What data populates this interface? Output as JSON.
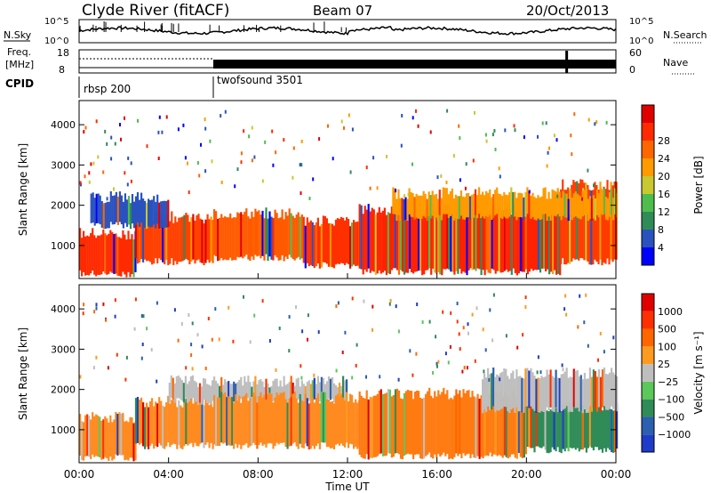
{
  "header": {
    "station": "Clyde River (fitACF)",
    "beam": "Beam 07",
    "date": "20/Oct/2013"
  },
  "top_panels": {
    "nsky_label": "N.Sky",
    "nsearch_label": "N.Search",
    "noise_ticks": [
      "10^5",
      "10^0"
    ],
    "freq_label_1": "Freq.",
    "freq_label_2": "[MHz]",
    "freq_ticks": [
      "18",
      "8"
    ],
    "nave_label": "Nave",
    "nave_ticks": [
      "60",
      "0"
    ],
    "cpid_label": "CPID",
    "cpid_segments": [
      {
        "name": "rbsp 200",
        "start": "00:00",
        "end": "06:00"
      },
      {
        "name": "twofsound 3501",
        "start": "06:00",
        "end": "24:00"
      }
    ]
  },
  "x_axis": {
    "label": "Time UT",
    "ticks": [
      "00:00",
      "04:00",
      "08:00",
      "12:00",
      "16:00",
      "20:00",
      "00:00"
    ]
  },
  "chart_data": [
    {
      "type": "heatmap",
      "panel": "power",
      "ylabel": "Slant Range [km]",
      "yticks": [
        1000,
        2000,
        3000,
        4000
      ],
      "ylim": [
        180,
        4600
      ],
      "xlim_hours": [
        0,
        24
      ],
      "colorbar": {
        "label": "Power [dB]",
        "ticks": [
          4,
          8,
          12,
          16,
          20,
          24,
          28
        ],
        "colors": [
          "#0000ff",
          "#2a52be",
          "#2f8b57",
          "#4dbd4d",
          "#c8c830",
          "#ff9a00",
          "#ff6600",
          "#ff2a00",
          "#e00000"
        ]
      },
      "echo_bands": [
        {
          "t0": 0.0,
          "t1": 2.5,
          "r0": 300,
          "r1": 1300,
          "color": "#ff2a00"
        },
        {
          "t0": 2.5,
          "t1": 6.0,
          "r0": 600,
          "r1": 1700,
          "color": "#ff4000"
        },
        {
          "t0": 6.0,
          "t1": 10.0,
          "r0": 700,
          "r1": 1800,
          "color": "#ff5a00"
        },
        {
          "t0": 10.0,
          "t1": 12.5,
          "r0": 500,
          "r1": 1600,
          "color": "#ff3000"
        },
        {
          "t0": 12.5,
          "t1": 21.5,
          "r0": 350,
          "r1": 1900,
          "color": "#ff2200"
        },
        {
          "t0": 21.5,
          "t1": 24.0,
          "r0": 600,
          "r1": 2500,
          "color": "#ff3a00"
        },
        {
          "t0": 0.5,
          "t1": 4.0,
          "r0": 1500,
          "r1": 2200,
          "color": "#2a52be"
        },
        {
          "t0": 14.0,
          "t1": 24.0,
          "r0": 1700,
          "r1": 2300,
          "color": "#ff9a00"
        }
      ]
    },
    {
      "type": "heatmap",
      "panel": "velocity",
      "ylabel": "Slant Range [km]",
      "yticks": [
        1000,
        2000,
        3000,
        4000
      ],
      "ylim": [
        180,
        4600
      ],
      "xlim_hours": [
        0,
        24
      ],
      "colorbar": {
        "label": "Velocity [m s⁻¹]",
        "ticks": [
          "1000",
          "500",
          "100",
          "25",
          "−25",
          "−100",
          "−500",
          "−1000"
        ],
        "colors": [
          "#1e3cc8",
          "#2b5fb0",
          "#2f8b57",
          "#5ac85a",
          "#bebebe",
          "#ff9a20",
          "#ff6600",
          "#ff3000",
          "#e00000"
        ]
      },
      "echo_bands": [
        {
          "t0": 0.0,
          "t1": 2.5,
          "r0": 300,
          "r1": 1300,
          "color": "#ff8a20"
        },
        {
          "t0": 2.5,
          "t1": 6.0,
          "r0": 600,
          "r1": 1700,
          "color": "#ff8a20"
        },
        {
          "t0": 4.0,
          "t1": 12.0,
          "r0": 1700,
          "r1": 2200,
          "color": "#bebebe"
        },
        {
          "t0": 6.0,
          "t1": 12.5,
          "r0": 600,
          "r1": 1800,
          "color": "#ff8a20"
        },
        {
          "t0": 12.5,
          "t1": 20.0,
          "r0": 350,
          "r1": 1900,
          "color": "#ff7a10"
        },
        {
          "t0": 20.0,
          "t1": 24.0,
          "r0": 500,
          "r1": 1600,
          "color": "#2f8b57"
        },
        {
          "t0": 18.0,
          "t1": 24.0,
          "r0": 1500,
          "r1": 2400,
          "color": "#bebebe"
        }
      ]
    }
  ]
}
